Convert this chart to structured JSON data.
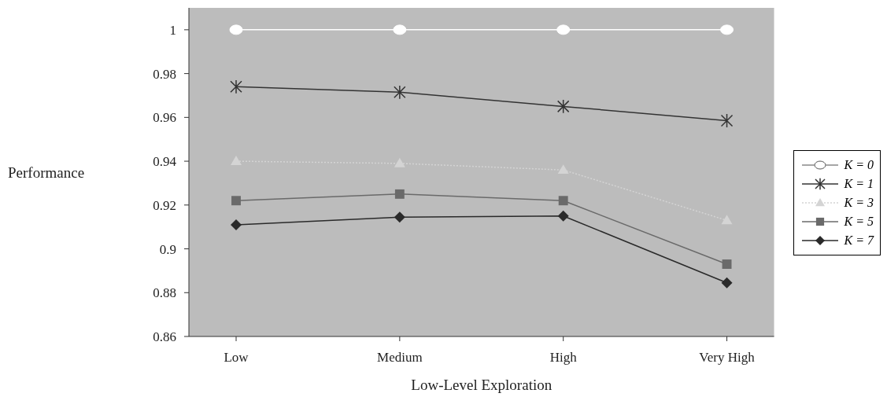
{
  "chart_data": {
    "type": "line",
    "xlabel": "Low-Level Exploration",
    "ylabel": "Performance",
    "categories": [
      "Low",
      "Medium",
      "High",
      "Very High"
    ],
    "series": [
      {
        "name": "K = 0",
        "color": "#ffffff",
        "marker": "circle",
        "values": [
          1,
          1,
          1,
          1
        ]
      },
      {
        "name": "K = 1",
        "color": "#333333",
        "marker": "cross",
        "values": [
          0.974,
          0.9715,
          0.965,
          0.9585
        ]
      },
      {
        "name": "K = 3",
        "color": "#d4d4d4",
        "marker": "triangle",
        "line_style": "dotted",
        "values": [
          0.94,
          0.939,
          0.936,
          0.913
        ]
      },
      {
        "name": "K = 5",
        "color": "#6a6a6a",
        "marker": "square",
        "values": [
          0.922,
          0.925,
          0.922,
          0.893
        ]
      },
      {
        "name": "K = 7",
        "color": "#2a2a2a",
        "marker": "diamond",
        "values": [
          0.911,
          0.9145,
          0.915,
          0.8845
        ]
      }
    ],
    "ylim": [
      0.86,
      1.01
    ],
    "yticks": [
      0.86,
      0.88,
      0.9,
      0.92,
      0.94,
      0.96,
      0.98,
      1
    ],
    "grid": false,
    "legend": "right"
  }
}
